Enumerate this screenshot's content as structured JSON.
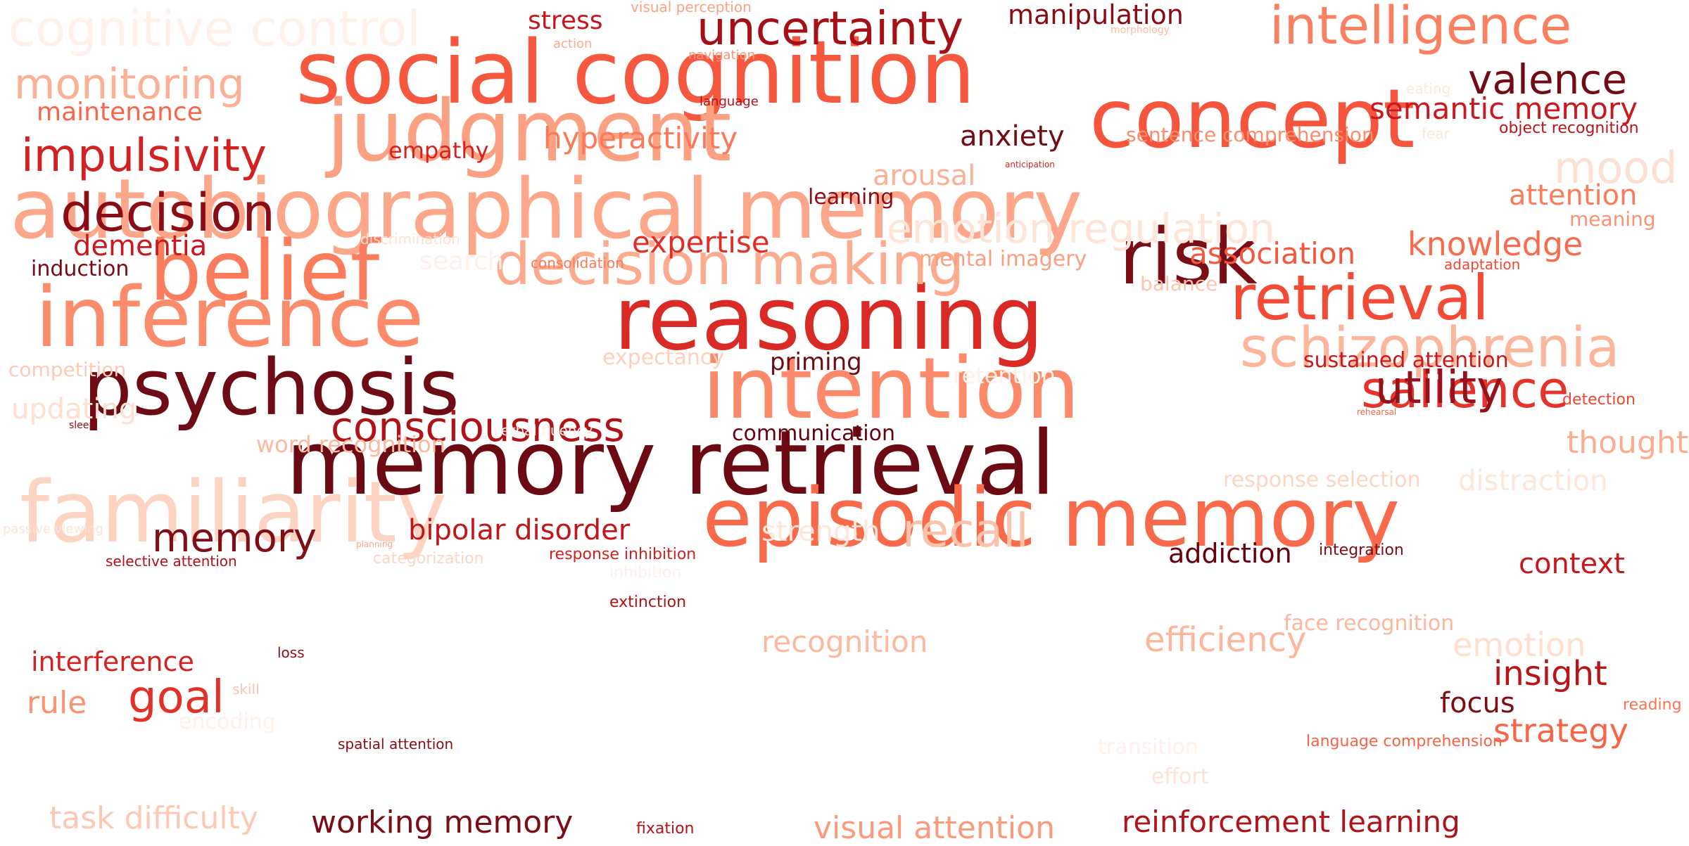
{
  "words": [
    {
      "text": "autobiographical memory",
      "color": "#fca68a"
    },
    {
      "text": "memory retrieval",
      "color": "#6b0a13"
    },
    {
      "text": "social cognition",
      "color": "#f6573f"
    },
    {
      "text": "reasoning",
      "color": "#d92a25"
    },
    {
      "text": "intention",
      "color": "#fc8a6a"
    },
    {
      "text": "episodic memory",
      "color": "#f96a4b"
    },
    {
      "text": "judgment",
      "color": "#fca082"
    },
    {
      "text": "inference",
      "color": "#fc8b6b"
    },
    {
      "text": "belief",
      "color": "#fb7c5c"
    },
    {
      "text": "concept",
      "color": "#f5553c"
    },
    {
      "text": "psychosis",
      "color": "#6f0b14"
    },
    {
      "text": "familiarity",
      "color": "#fdd4c2"
    },
    {
      "text": "risk",
      "color": "#7a0d16"
    },
    {
      "text": "decision making",
      "color": "#fcab8f"
    },
    {
      "text": "retrieval",
      "color": "#f24a35"
    },
    {
      "text": "schizophrenia",
      "color": "#fcb69b"
    },
    {
      "text": "salience",
      "color": "#e4332b"
    },
    {
      "text": "intelligence",
      "color": "#fb8060"
    },
    {
      "text": "consciousness",
      "color": "#b01217"
    },
    {
      "text": "uncertainty",
      "color": "#a50f15"
    },
    {
      "text": "decision",
      "color": "#8a0c14"
    },
    {
      "text": "memory",
      "color": "#800e16"
    },
    {
      "text": "recall",
      "color": "#fcc2aa"
    },
    {
      "text": "emotion regulation",
      "color": "#fee5d8"
    },
    {
      "text": "cognitive control",
      "color": "#fff0e9"
    },
    {
      "text": "impulsivity",
      "color": "#d32020"
    },
    {
      "text": "monitoring",
      "color": "#fcb196"
    },
    {
      "text": "utility",
      "color": "#96111b"
    },
    {
      "text": "valence",
      "color": "#730b14"
    },
    {
      "text": "mood",
      "color": "#fee0d2"
    },
    {
      "text": "goal",
      "color": "#e23127"
    },
    {
      "text": "efficiency",
      "color": "#fcb69b"
    },
    {
      "text": "insight",
      "color": "#b81419"
    },
    {
      "text": "working memory",
      "color": "#7d0d15"
    },
    {
      "text": "task difficulty",
      "color": "#fdc9b4"
    },
    {
      "text": "visual attention",
      "color": "#fc9a7b"
    },
    {
      "text": "reinforcement learning",
      "color": "#b0131a"
    },
    {
      "text": "hyperactivity",
      "color": "#fb7858"
    },
    {
      "text": "semantic memory",
      "color": "#cc171d"
    },
    {
      "text": "expertise",
      "color": "#e02d26"
    },
    {
      "text": "bipolar disorder",
      "color": "#c3161b"
    },
    {
      "text": "recognition",
      "color": "#fcb99f"
    },
    {
      "text": "knowledge",
      "color": "#f96b4c"
    },
    {
      "text": "association",
      "color": "#f3583e"
    },
    {
      "text": "context",
      "color": "#c8171c"
    },
    {
      "text": "thought",
      "color": "#fcad90"
    },
    {
      "text": "strategy",
      "color": "#f96346"
    },
    {
      "text": "emotion",
      "color": "#fedfd0"
    },
    {
      "text": "strength",
      "color": "#fee6da"
    },
    {
      "text": "arousal",
      "color": "#fcb196"
    },
    {
      "text": "anxiety",
      "color": "#740c14"
    },
    {
      "text": "attention",
      "color": "#fb7b5b"
    },
    {
      "text": "manipulation",
      "color": "#880b14"
    },
    {
      "text": "maintenance",
      "color": "#f86548"
    },
    {
      "text": "interference",
      "color": "#d42121"
    },
    {
      "text": "dementia",
      "color": "#cb181d"
    },
    {
      "text": "distraction",
      "color": "#fee6da"
    },
    {
      "text": "addiction",
      "color": "#67000d"
    },
    {
      "text": "rule",
      "color": "#fc9474"
    },
    {
      "text": "focus",
      "color": "#7f0d16"
    },
    {
      "text": "updating",
      "color": "#fde0d2"
    },
    {
      "text": "stress",
      "color": "#c5171c"
    },
    {
      "text": "priming",
      "color": "#6d0c14"
    },
    {
      "text": "empathy",
      "color": "#d42121"
    },
    {
      "text": "word recognition",
      "color": "#fcb99f"
    },
    {
      "text": "response selection",
      "color": "#fdd4c2"
    },
    {
      "text": "mental imagery",
      "color": "#fc9e80"
    },
    {
      "text": "sustained attention",
      "color": "#cb181d"
    },
    {
      "text": "face recognition",
      "color": "#fcb89e"
    },
    {
      "text": "communication",
      "color": "#67000d"
    },
    {
      "text": "learning",
      "color": "#8c0d15"
    },
    {
      "text": "induction",
      "color": "#7a0b14"
    },
    {
      "text": "sentence comprehension",
      "color": "#fb8d6d"
    },
    {
      "text": "expectancy",
      "color": "#fdd0bc"
    },
    {
      "text": "retention",
      "color": "#fff0e8"
    },
    {
      "text": "search",
      "color": "#fff0e9"
    },
    {
      "text": "effort",
      "color": "#fee3d6"
    },
    {
      "text": "transition",
      "color": "#fff0e9"
    },
    {
      "text": "competition",
      "color": "#fdcab5"
    },
    {
      "text": "balance",
      "color": "#fdc5ae"
    },
    {
      "text": "meaning",
      "color": "#fc9272"
    },
    {
      "text": "encoding",
      "color": "#fff0e8"
    },
    {
      "text": "language comprehension",
      "color": "#f86346"
    },
    {
      "text": "categorization",
      "color": "#fdd5c4"
    },
    {
      "text": "response inhibition",
      "color": "#d32020"
    },
    {
      "text": "selective attention",
      "color": "#b11218"
    },
    {
      "text": "object recognition",
      "color": "#bb141a"
    },
    {
      "text": "spatial attention",
      "color": "#8b0d15"
    },
    {
      "text": "fixation",
      "color": "#b61419"
    },
    {
      "text": "integration",
      "color": "#7e0d15"
    },
    {
      "text": "detection",
      "color": "#f14431"
    },
    {
      "text": "reading",
      "color": "#fb7353"
    },
    {
      "text": "consolidation",
      "color": "#fb7a5a"
    },
    {
      "text": "discrimination",
      "color": "#fee1d3"
    },
    {
      "text": "adaptation",
      "color": "#f24734"
    },
    {
      "text": "visual perception",
      "color": "#fca285"
    },
    {
      "text": "navigation",
      "color": "#fc9474"
    },
    {
      "text": "language",
      "color": "#b21218"
    },
    {
      "text": "extinction",
      "color": "#b11218"
    },
    {
      "text": "inhibition",
      "color": "#fff0e9"
    },
    {
      "text": "verbal fluency",
      "color": "#fff0e9"
    },
    {
      "text": "passive viewing",
      "color": "#fee4d8"
    },
    {
      "text": "fear",
      "color": "#fee6da"
    },
    {
      "text": "action",
      "color": "#fcaa8d"
    },
    {
      "text": "skill",
      "color": "#fcc4ad"
    },
    {
      "text": "loss",
      "color": "#8e0f16"
    },
    {
      "text": "eating",
      "color": "#fee8dd"
    },
    {
      "text": "morphology",
      "color": "#fcbca2"
    },
    {
      "text": "anticipation",
      "color": "#d92523"
    },
    {
      "text": "planning",
      "color": "#fca486"
    },
    {
      "text": "rehearsal",
      "color": "#f86548"
    },
    {
      "text": "sleep",
      "color": "#8a0c14"
    }
  ]
}
